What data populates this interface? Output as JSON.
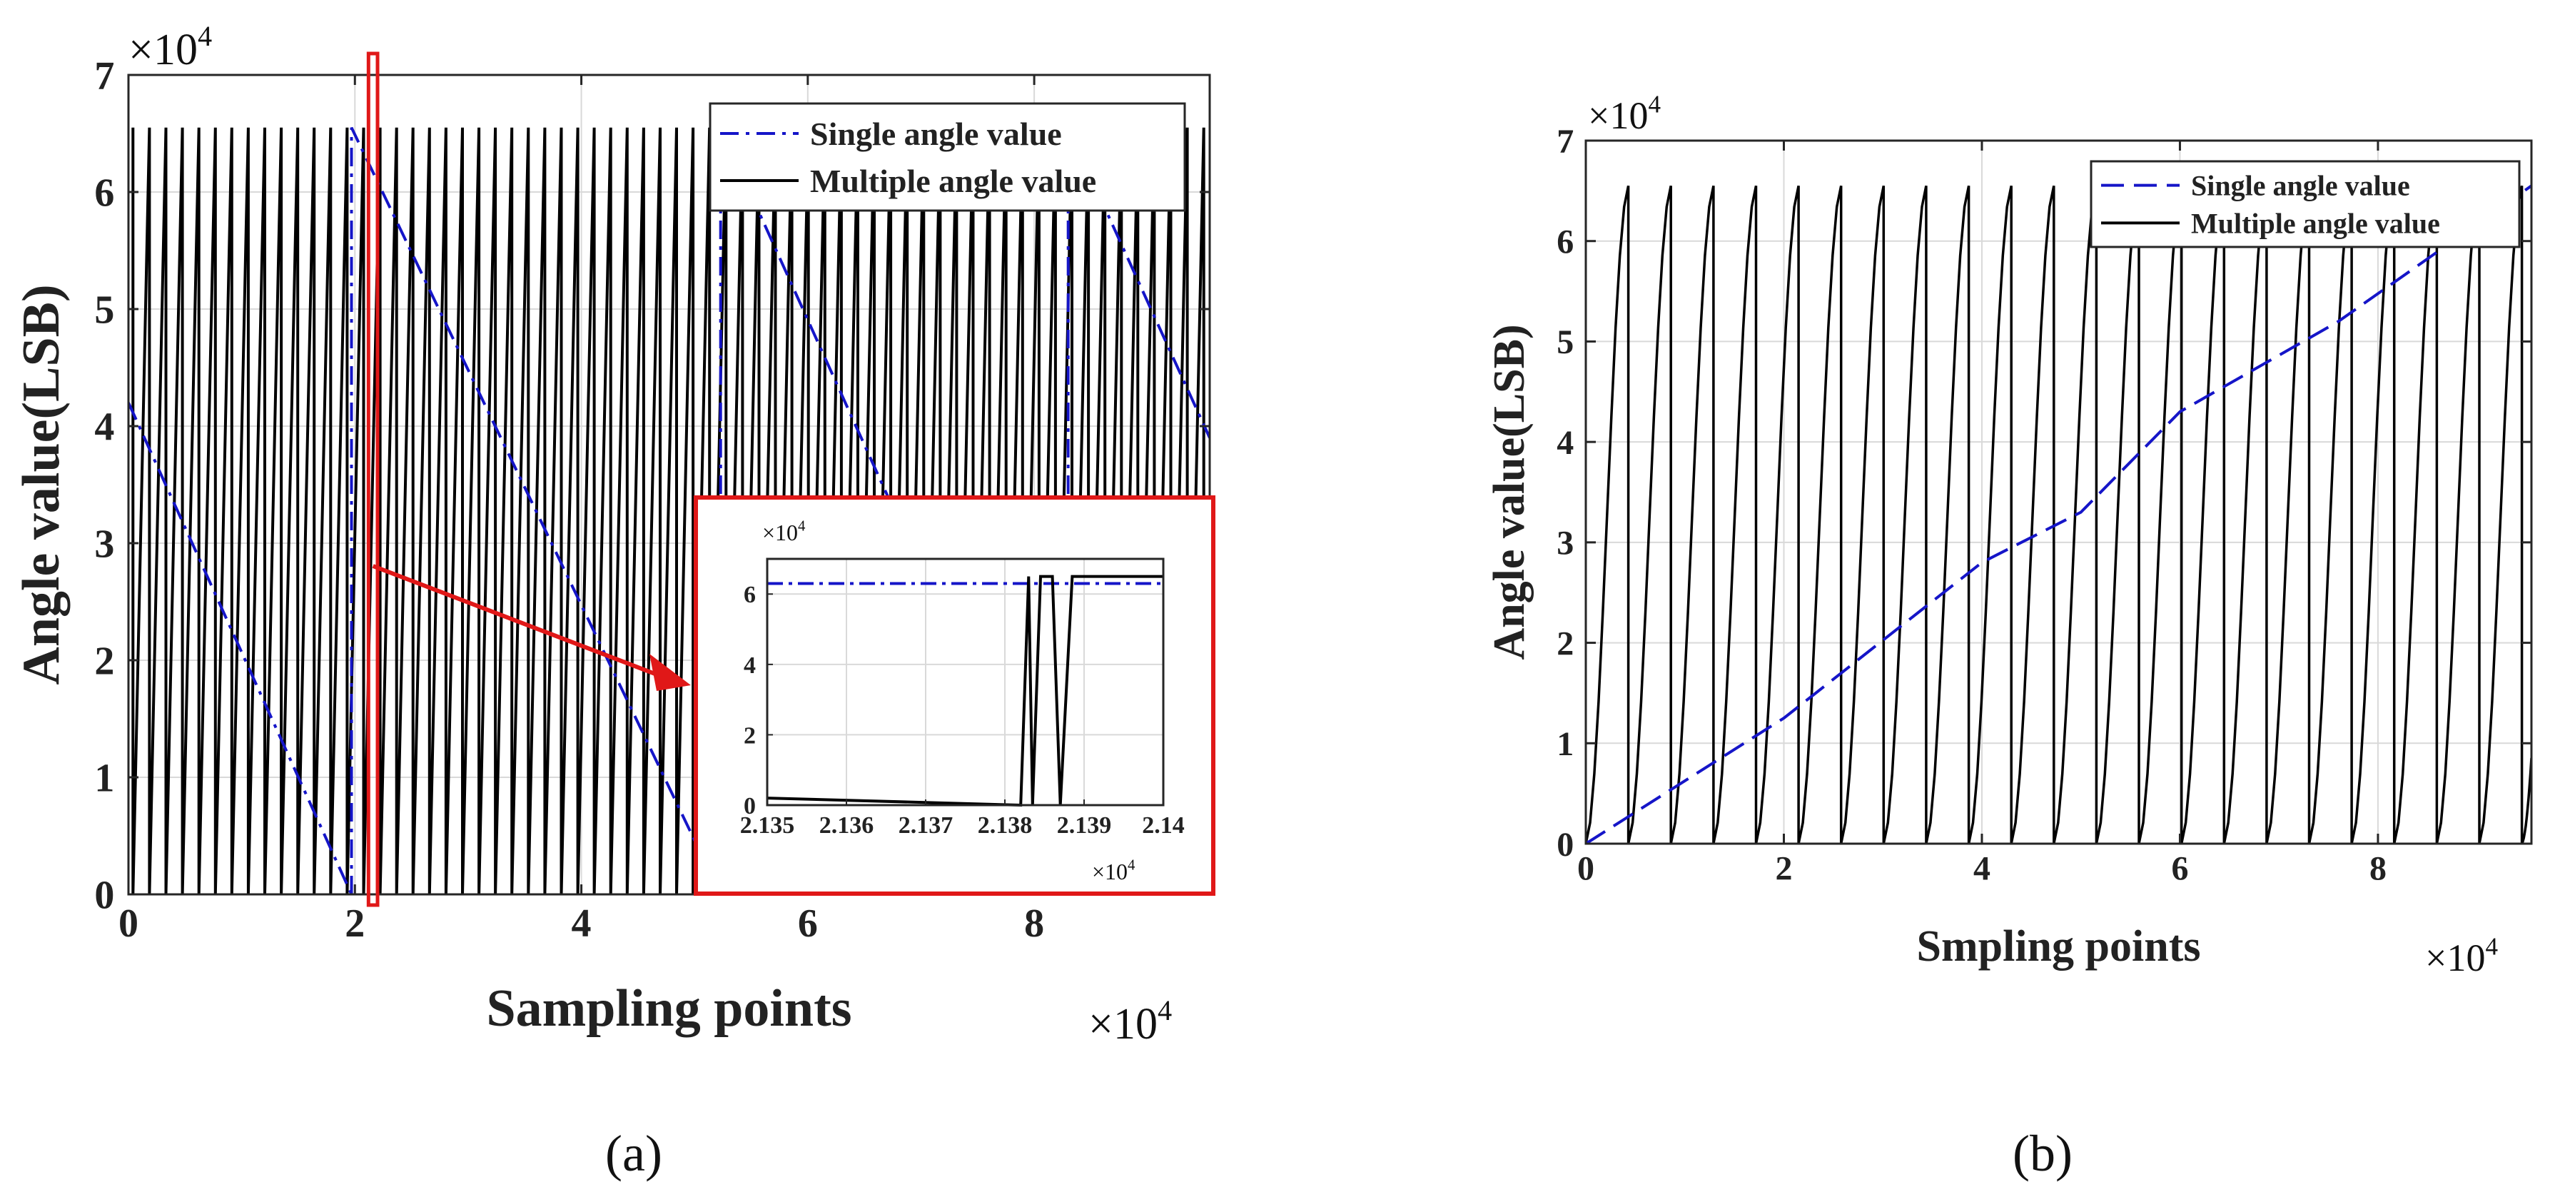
{
  "chart_data": [
    {
      "type": "line",
      "panel": "a",
      "caption": "(a)",
      "xlabel": "Sampling points",
      "ylabel": "Angle value(LSB)",
      "x_multiplier": "×10",
      "y_multiplier": "×10",
      "exponent": "4",
      "xlim": [
        0,
        9.55
      ],
      "ylim": [
        0,
        7
      ],
      "xticks": [
        0,
        2,
        4,
        6,
        8
      ],
      "yticks": [
        0,
        1,
        2,
        3,
        4,
        5,
        6,
        7
      ],
      "xtick_labels": [
        "0",
        "2",
        "4",
        "6",
        "8"
      ],
      "ytick_labels": [
        "0",
        "1",
        "2",
        "3",
        "4",
        "5",
        "6",
        "7"
      ],
      "grid": true,
      "legend": "top-right",
      "legend_entries": [
        "Single angle value",
        "Multiple angle value"
      ],
      "series": [
        {
          "name": "Single angle value",
          "style": "dash-dot",
          "color": "#1515c8",
          "segments": [
            [
              [
                0,
                4.2
              ],
              [
                1.97,
                0
              ]
            ],
            [
              [
                1.97,
                0
              ],
              [
                1.97,
                6.55
              ],
              [
                5.23,
                0
              ]
            ],
            [
              [
                5.23,
                0
              ],
              [
                5.23,
                6.55
              ],
              [
                8.3,
                0
              ]
            ],
            [
              [
                8.3,
                0
              ],
              [
                8.3,
                6.55
              ],
              [
                9.55,
                3.9
              ]
            ]
          ]
        },
        {
          "name": "Multiple angle value",
          "style": "solid",
          "color": "#000000",
          "period": 0.1455,
          "max": 6.55,
          "min": 0,
          "phase": 0.04
        }
      ],
      "highlight": {
        "x_from": 2.12,
        "x_to": 2.2
      },
      "inset": {
        "x_multiplier": "×10",
        "y_multiplier": "×10",
        "exponent": "4",
        "xlim": [
          2.135,
          2.14
        ],
        "ylim": [
          0,
          7
        ],
        "xticks": [
          2.135,
          2.136,
          2.137,
          2.138,
          2.139,
          2.14
        ],
        "yticks": [
          0,
          2,
          4,
          6
        ],
        "xtick_labels": [
          "2.135",
          "2.136",
          "2.137",
          "2.138",
          "2.139",
          "2.14"
        ],
        "ytick_labels": [
          "0",
          "2",
          "4",
          "6"
        ],
        "single_value": 6.3,
        "multiple_points": [
          [
            2.135,
            0.2
          ],
          [
            2.1382,
            0
          ],
          [
            2.1383,
            6.5
          ],
          [
            2.13835,
            0
          ],
          [
            2.13845,
            6.5
          ],
          [
            2.1386,
            6.5
          ],
          [
            2.1387,
            0
          ],
          [
            2.13885,
            6.5
          ],
          [
            2.14,
            6.5
          ]
        ]
      }
    },
    {
      "type": "line",
      "panel": "b",
      "caption": "(b)",
      "xlabel": "Smpling points",
      "ylabel": "Angle value(LSB)",
      "x_multiplier": "×10",
      "y_multiplier": "×10",
      "exponent": "4",
      "xlim": [
        0,
        9.55
      ],
      "ylim": [
        0,
        7
      ],
      "xticks": [
        0,
        2,
        4,
        6,
        8
      ],
      "yticks": [
        0,
        1,
        2,
        3,
        4,
        5,
        6,
        7
      ],
      "xtick_labels": [
        "0",
        "2",
        "4",
        "6",
        "8"
      ],
      "ytick_labels": [
        "0",
        "1",
        "2",
        "3",
        "4",
        "5",
        "6",
        "7"
      ],
      "grid": true,
      "legend": "top-right",
      "legend_entries": [
        "Single angle value",
        "Multiple angle value"
      ],
      "series": [
        {
          "name": "Single angle value",
          "style": "dashed",
          "color": "#1515c8",
          "points": [
            [
              0,
              0
            ],
            [
              2,
              1.25
            ],
            [
              4,
              2.8
            ],
            [
              5,
              3.3
            ],
            [
              6,
              4.3
            ],
            [
              7.6,
              5.2
            ],
            [
              9.55,
              6.55
            ]
          ]
        },
        {
          "name": "Multiple angle value",
          "style": "solid",
          "color": "#000000",
          "period": 0.4297,
          "max": 6.55,
          "min": 0
        }
      ]
    }
  ]
}
